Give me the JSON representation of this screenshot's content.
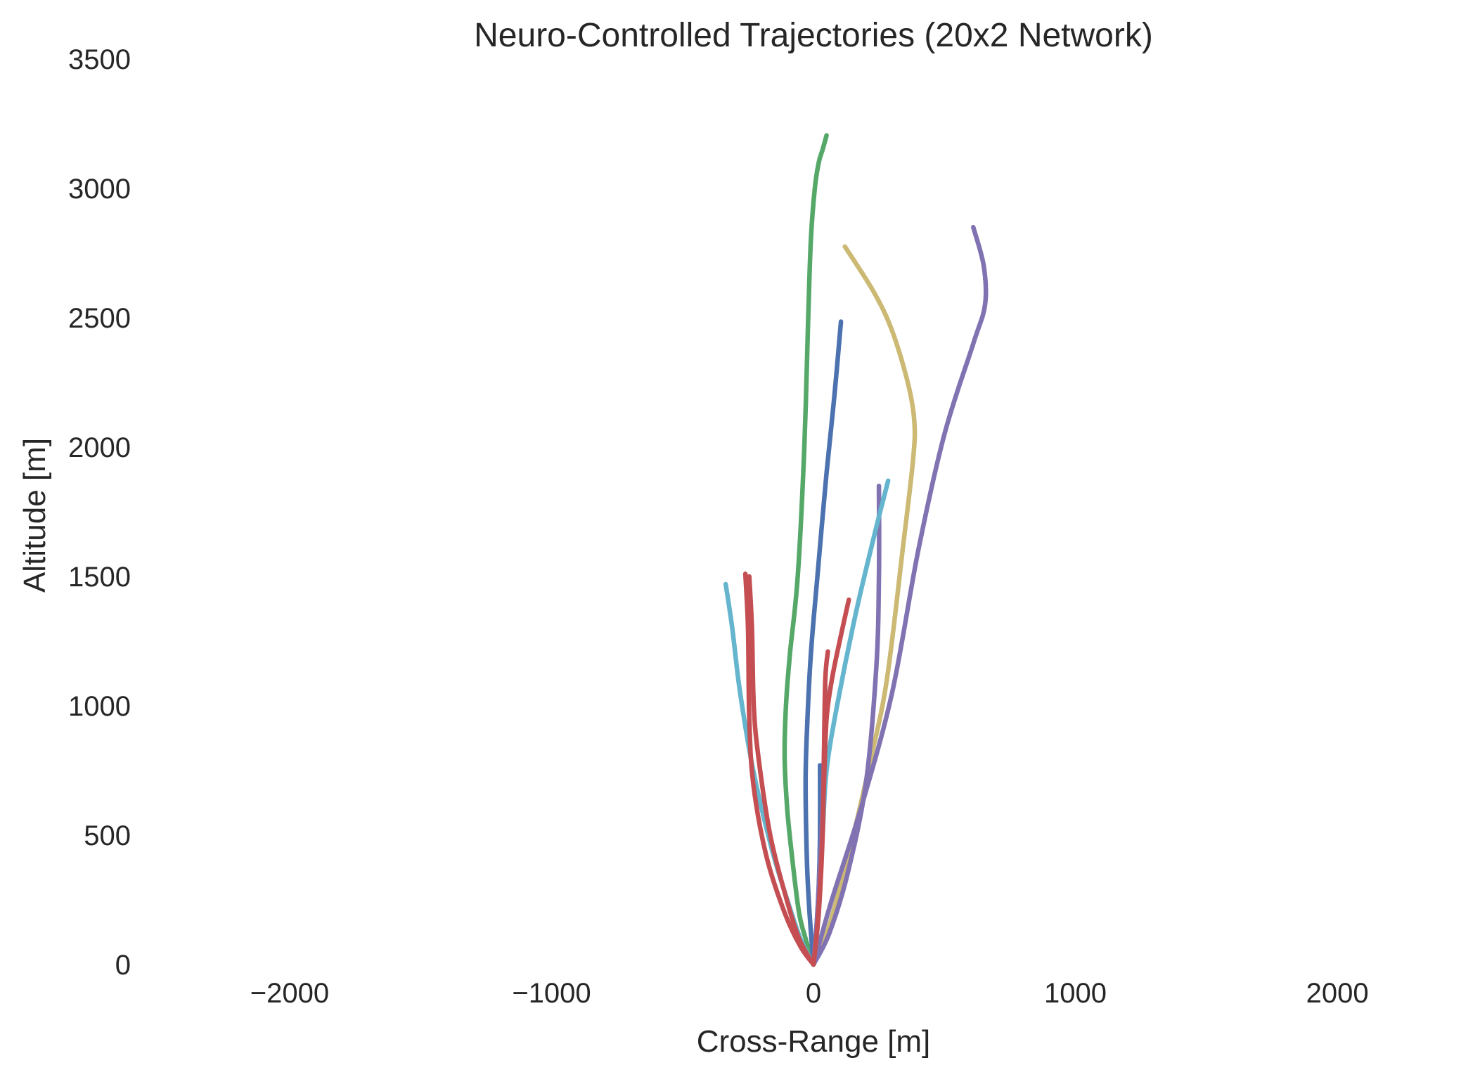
{
  "chart_data": {
    "type": "line",
    "title": "Neuro-Controlled Trajectories (20x2 Network)",
    "xlabel": "Cross-Range [m]",
    "ylabel": "Altitude [m]",
    "xlim": [
      -2550,
      2550
    ],
    "ylim": [
      0,
      3500
    ],
    "xticks": [
      {
        "value": -2000,
        "label": "−2000"
      },
      {
        "value": -1000,
        "label": "−1000"
      },
      {
        "value": 0,
        "label": "0"
      },
      {
        "value": 1000,
        "label": "1000"
      },
      {
        "value": 2000,
        "label": "2000"
      }
    ],
    "yticks": [
      {
        "value": 0,
        "label": "0"
      },
      {
        "value": 500,
        "label": "500"
      },
      {
        "value": 1000,
        "label": "1000"
      },
      {
        "value": 1500,
        "label": "1500"
      },
      {
        "value": 2000,
        "label": "2000"
      },
      {
        "value": 2500,
        "label": "2500"
      },
      {
        "value": 3000,
        "label": "3000"
      },
      {
        "value": 3500,
        "label": "3500"
      }
    ],
    "grid": false,
    "legend": "none",
    "series": [
      {
        "color": "#55a868",
        "x": [
          50,
          35,
          20,
          5,
          -10,
          -20,
          -35,
          -60,
          -90,
          -105,
          -110,
          -100,
          -80,
          -55,
          -30,
          0
        ],
        "y": [
          3205,
          3150,
          3100,
          3000,
          2800,
          2500,
          2000,
          1500,
          1200,
          1000,
          800,
          600,
          400,
          200,
          100,
          0
        ]
      },
      {
        "color": "#4c72b0",
        "x": [
          105,
          80,
          50,
          15,
          -10,
          -25,
          -30,
          -25,
          -15,
          0
        ],
        "y": [
          2485,
          2200,
          1900,
          1500,
          1200,
          900,
          700,
          400,
          200,
          0
        ]
      },
      {
        "color": "#4c72b0",
        "x": [
          25,
          25,
          20,
          10,
          0
        ],
        "y": [
          770,
          500,
          300,
          120,
          0
        ]
      },
      {
        "color": "#ccb974",
        "x": [
          120,
          230,
          300,
          360,
          385,
          380,
          340,
          280,
          220,
          140,
          60,
          0
        ],
        "y": [
          2775,
          2600,
          2450,
          2250,
          2100,
          1950,
          1600,
          1100,
          800,
          450,
          150,
          0
        ]
      },
      {
        "color": "#8172b2",
        "x": [
          610,
          650,
          655,
          610,
          500,
          400,
          300,
          180,
          70,
          0
        ],
        "y": [
          2850,
          2700,
          2550,
          2400,
          2050,
          1600,
          1050,
          600,
          250,
          0
        ]
      },
      {
        "color": "#8172b2",
        "x": [
          250,
          250,
          240,
          200,
          130,
          60,
          0
        ],
        "y": [
          1850,
          1500,
          1150,
          700,
          350,
          120,
          0
        ]
      },
      {
        "color": "#8172b2",
        "x": [
          45,
          40,
          30,
          15,
          0
        ],
        "y": [
          1080,
          800,
          500,
          200,
          0
        ]
      },
      {
        "color": "#64b5cd",
        "x": [
          285,
          230,
          160,
          90,
          50,
          35,
          20,
          0
        ],
        "y": [
          1870,
          1650,
          1350,
          1000,
          750,
          500,
          200,
          0
        ]
      },
      {
        "color": "#64b5cd",
        "x": [
          -335,
          -310,
          -280,
          -230,
          -160,
          -100,
          -50,
          0
        ],
        "y": [
          1470,
          1300,
          1050,
          750,
          450,
          250,
          100,
          0
        ]
      },
      {
        "color": "#c44e52",
        "x": [
          -245,
          -235,
          -228,
          -210,
          -165,
          -105,
          -55,
          0
        ],
        "y": [
          1500,
          1300,
          1000,
          800,
          500,
          260,
          100,
          0
        ]
      },
      {
        "color": "#c44e52",
        "x": [
          -260,
          -250,
          -245,
          -230,
          -180,
          -110,
          -50,
          0
        ],
        "y": [
          1510,
          1300,
          950,
          700,
          420,
          200,
          70,
          0
        ]
      },
      {
        "color": "#c44e52",
        "x": [
          135,
          100,
          70,
          50,
          40,
          30,
          15,
          0
        ],
        "y": [
          1410,
          1250,
          1100,
          950,
          700,
          400,
          150,
          0
        ]
      },
      {
        "color": "#c44e52",
        "x": [
          55,
          45,
          40,
          35,
          20,
          0
        ],
        "y": [
          1210,
          1100,
          800,
          500,
          200,
          0
        ]
      }
    ]
  }
}
